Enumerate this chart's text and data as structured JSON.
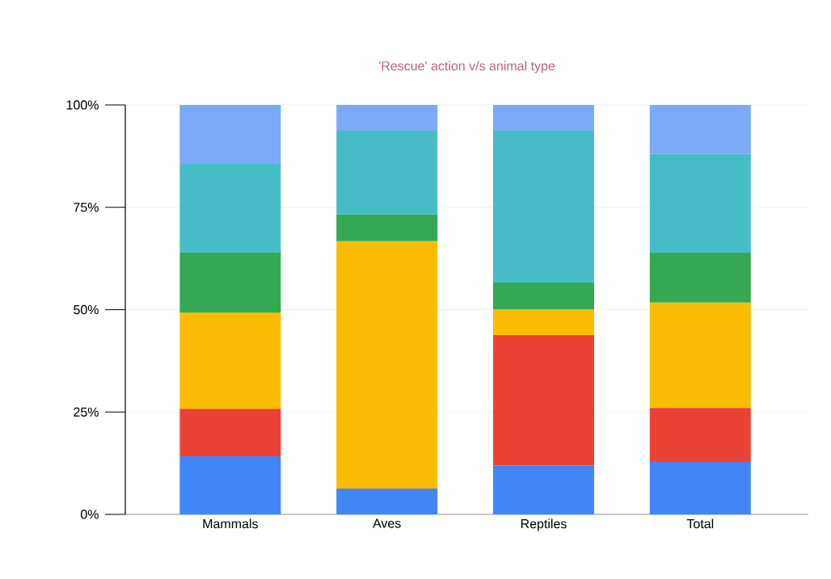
{
  "chart_data": {
    "type": "bar",
    "title": "'Rescue' action v/s animal type",
    "stacked": true,
    "categories": [
      "Mammals",
      "Aves",
      "Reptiles",
      "Total"
    ],
    "series": [
      {
        "color": "#4285f4",
        "values": [
          14.2,
          6.3,
          12.0,
          12.8
        ]
      },
      {
        "color": "#ea4335",
        "values": [
          11.6,
          0,
          31.8,
          13.2
        ]
      },
      {
        "color": "#fbbc04",
        "values": [
          23.5,
          60.4,
          6.3,
          25.7
        ]
      },
      {
        "color": "#34a853",
        "values": [
          14.6,
          6.5,
          6.5,
          12.2
        ]
      },
      {
        "color": "#46bdc6",
        "values": [
          21.7,
          20.5,
          37.1,
          24.1
        ]
      },
      {
        "color": "#7baaf7",
        "values": [
          14.4,
          6.3,
          6.3,
          12.0
        ]
      }
    ],
    "ylim": [
      0,
      100
    ],
    "yticks": [
      {
        "value": 0,
        "label": "0%"
      },
      {
        "value": 25,
        "label": "25%"
      },
      {
        "value": 50,
        "label": "50%"
      },
      {
        "value": 75,
        "label": "75%"
      },
      {
        "value": 100,
        "label": "100%"
      }
    ],
    "grid": "y"
  }
}
